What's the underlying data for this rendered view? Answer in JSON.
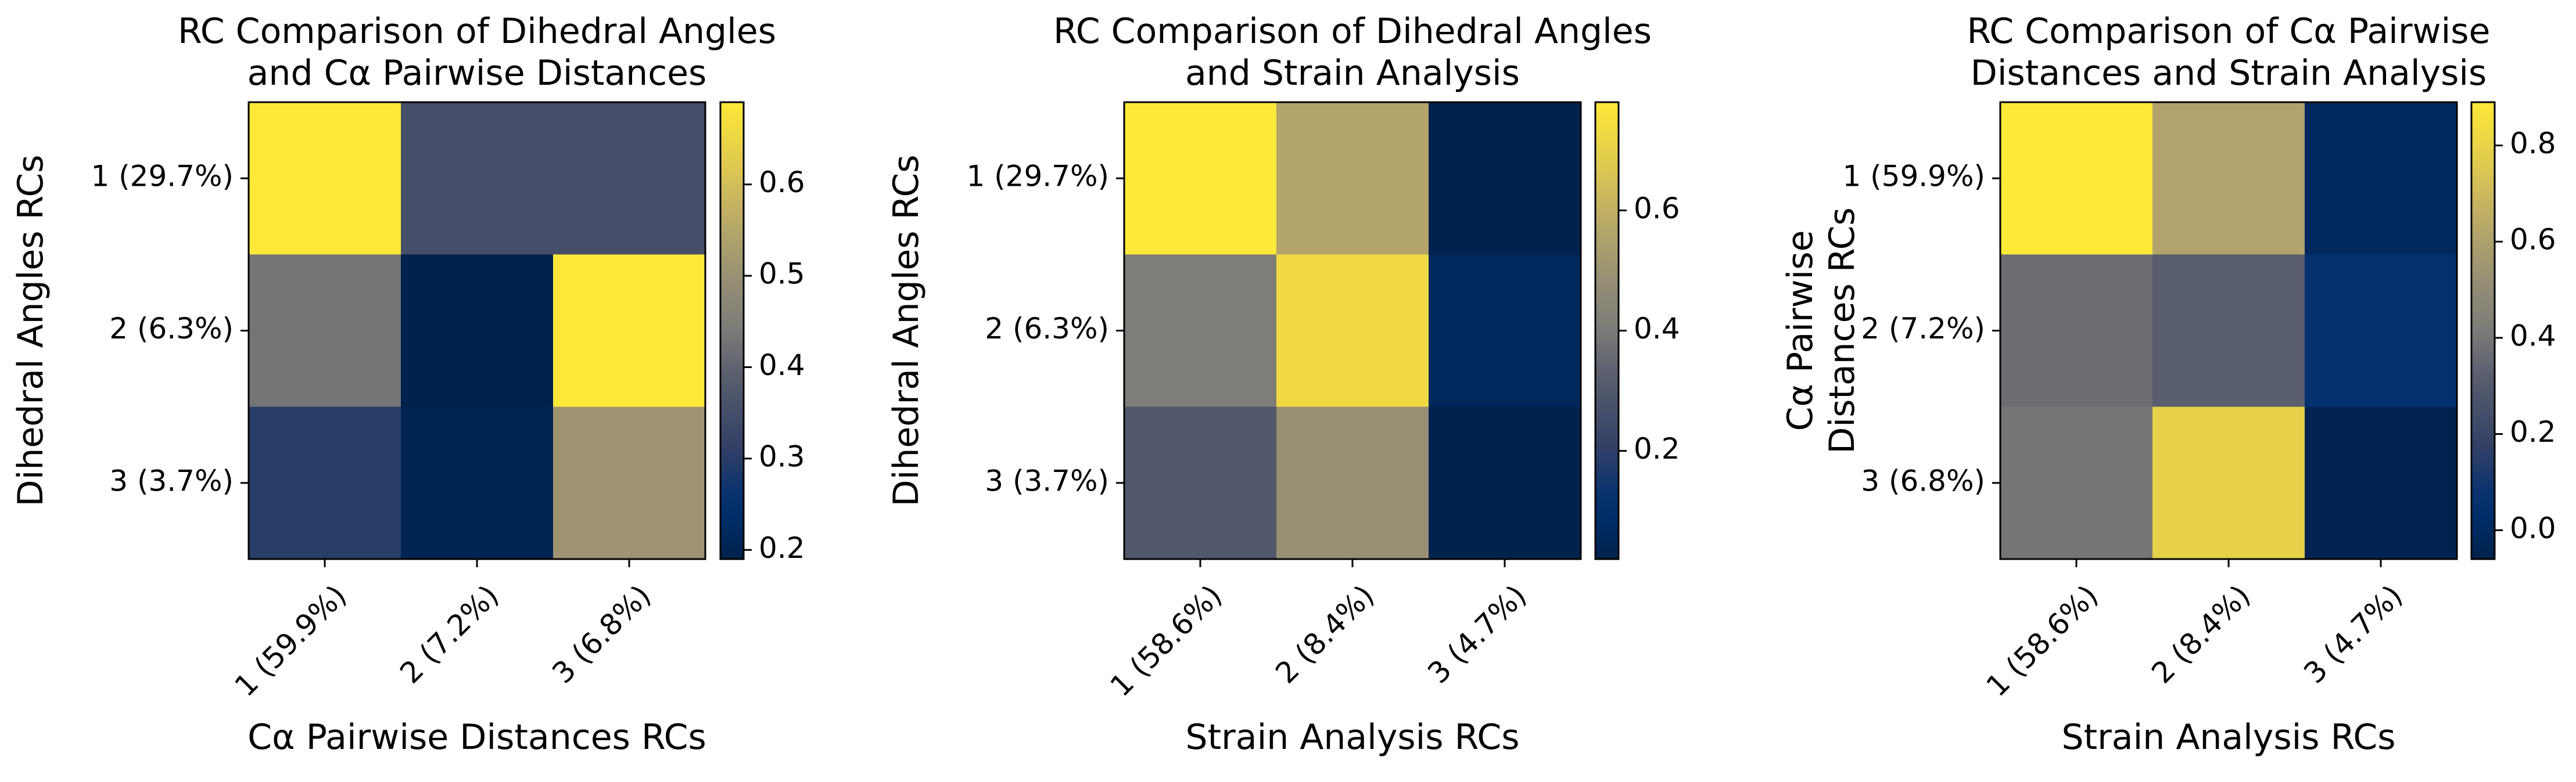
{
  "figure": {
    "background": "#ffffff"
  },
  "chart_data": [
    {
      "type": "heatmap",
      "title": "RC Comparison of Dihedral Angles\nand Cα Pairwise Distances",
      "xlabel": "Cα Pairwise Distances RCs",
      "ylabel": "Dihedral Angles RCs",
      "x_categories": [
        "1 (59.9%)",
        "2 (7.2%)",
        "3 (6.8%)"
      ],
      "y_categories": [
        "1 (29.7%)",
        "2 (6.3%)",
        "3 (3.7%)"
      ],
      "values": [
        [
          0.69,
          0.35,
          0.35
        ],
        [
          0.43,
          0.19,
          0.69
        ],
        [
          0.3,
          0.2,
          0.51
        ]
      ],
      "colormap": "cividis",
      "vmin": 0.19,
      "vmax": 0.69,
      "colorbar_ticks": [
        0.2,
        0.3,
        0.4,
        0.5,
        0.6
      ]
    },
    {
      "type": "heatmap",
      "title": "RC Comparison of Dihedral Angles\nand Strain Analysis",
      "xlabel": "Strain Analysis RCs",
      "ylabel": "Dihedral Angles RCs",
      "x_categories": [
        "1 (58.6%)",
        "2 (8.4%)",
        "3 (4.7%)"
      ],
      "y_categories": [
        "1 (29.7%)",
        "2 (6.3%)",
        "3 (3.7%)"
      ],
      "values": [
        [
          0.78,
          0.56,
          0.02
        ],
        [
          0.41,
          0.73,
          0.06
        ],
        [
          0.3,
          0.49,
          0.02
        ]
      ],
      "colormap": "cividis",
      "vmin": 0.02,
      "vmax": 0.78,
      "colorbar_ticks": [
        0.2,
        0.4,
        0.6
      ]
    },
    {
      "type": "heatmap",
      "title": "RC Comparison of Cα Pairwise\nDistances and Strain Analysis",
      "xlabel": "Strain Analysis RCs",
      "ylabel": "Cα Pairwise\nDistances RCs",
      "x_categories": [
        "1 (58.6%)",
        "2 (8.4%)",
        "3 (4.7%)"
      ],
      "y_categories": [
        "1 (59.9%)",
        "2 (7.2%)",
        "3 (6.8%)"
      ],
      "values": [
        [
          0.89,
          0.61,
          -0.01
        ],
        [
          0.37,
          0.32,
          0.06
        ],
        [
          0.4,
          0.79,
          -0.05
        ]
      ],
      "colormap": "cividis",
      "vmin": -0.06,
      "vmax": 0.89,
      "colorbar_ticks": [
        0.0,
        0.2,
        0.4,
        0.6,
        0.8
      ]
    }
  ]
}
